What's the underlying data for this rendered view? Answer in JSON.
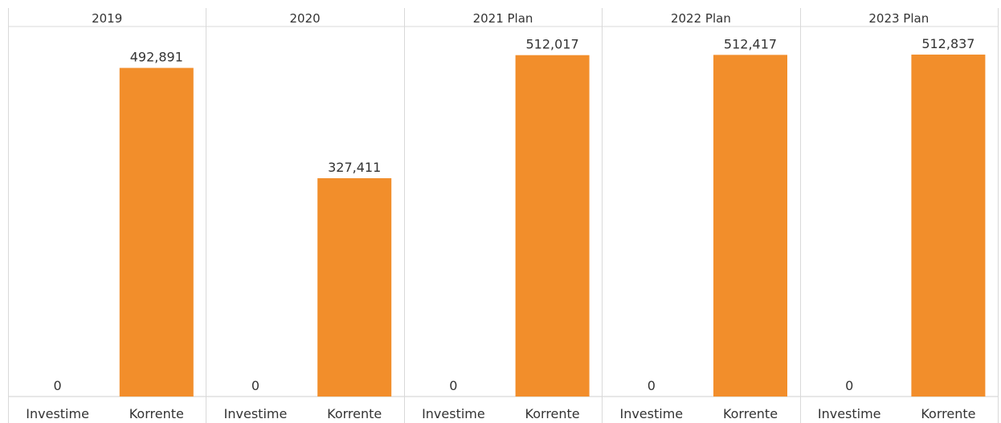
{
  "chart_data": {
    "type": "bar",
    "panels": [
      {
        "header": "2019",
        "categories": [
          "Investime",
          "Korrente"
        ],
        "values": [
          0,
          492891
        ],
        "labels": [
          "0",
          "492,891"
        ]
      },
      {
        "header": "2020",
        "categories": [
          "Investime",
          "Korrente"
        ],
        "values": [
          0,
          327411
        ],
        "labels": [
          "0",
          "327,411"
        ]
      },
      {
        "header": "2021 Plan",
        "categories": [
          "Investime",
          "Korrente"
        ],
        "values": [
          0,
          512017
        ],
        "labels": [
          "0",
          "512,017"
        ]
      },
      {
        "header": "2022 Plan",
        "categories": [
          "Investime",
          "Korrente"
        ],
        "values": [
          0,
          512417
        ],
        "labels": [
          "0",
          "512,417"
        ]
      },
      {
        "header": "2023 Plan",
        "categories": [
          "Investime",
          "Korrente"
        ],
        "values": [
          0,
          512837
        ],
        "labels": [
          "0",
          "512,837"
        ]
      }
    ],
    "ylim": [
      0,
      555000
    ],
    "bar_color": "#F28E2B",
    "grid": false,
    "legend": "none"
  }
}
